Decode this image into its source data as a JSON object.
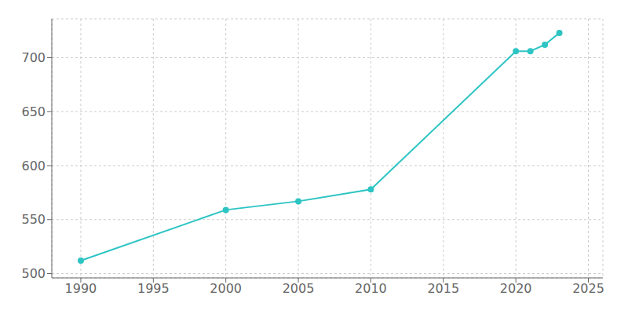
{
  "chart_data": {
    "type": "line",
    "x": [
      1990,
      2000,
      2005,
      2010,
      2020,
      2021,
      2022,
      2023
    ],
    "values": [
      512,
      559,
      567,
      578,
      706,
      706,
      712,
      723
    ],
    "color": "#2ec4c4",
    "marker": "circle",
    "xlim": [
      1988,
      2026
    ],
    "ylim": [
      496,
      736
    ],
    "xticks": [
      1990,
      1995,
      2000,
      2005,
      2010,
      2015,
      2020,
      2025
    ],
    "yticks": [
      500,
      550,
      600,
      650,
      700
    ],
    "grid": true
  }
}
